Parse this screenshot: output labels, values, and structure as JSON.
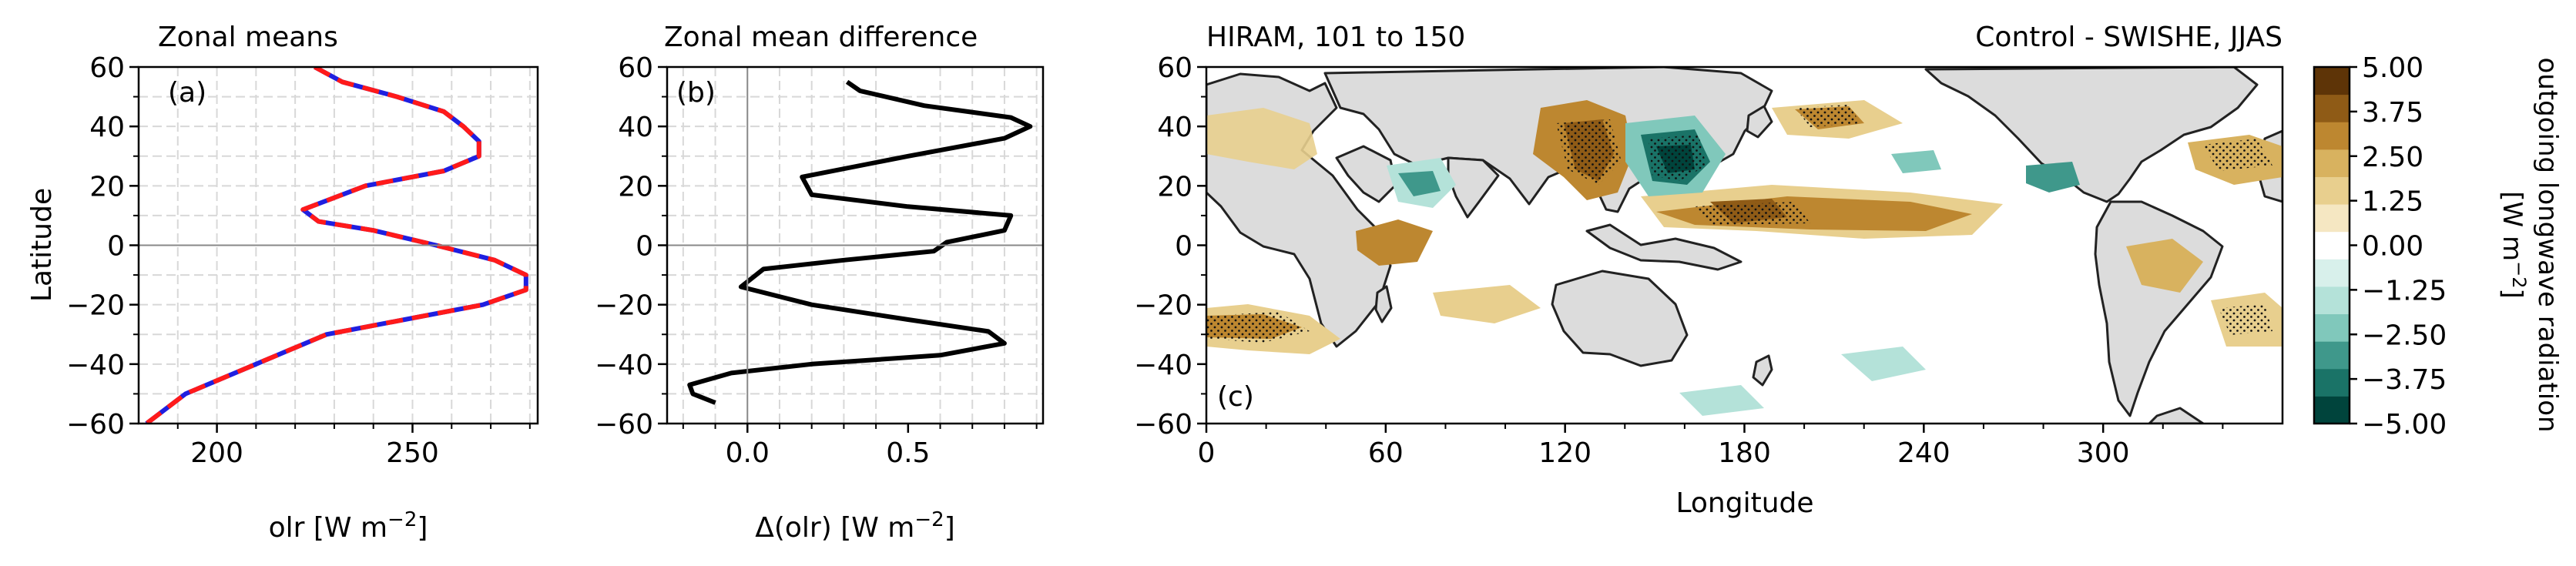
{
  "colors": {
    "olr_blue": "#1f1fe0",
    "olr_red": "#ff1a1a",
    "diff_black": "#000000",
    "land": "#dcdcdc",
    "colormap": [
      "#00443c",
      "#1a7367",
      "#3f988b",
      "#80c8bb",
      "#b4e2d9",
      "#d8f0eb",
      "#ffffff",
      "#f5e7c2",
      "#e8cf8e",
      "#d8b25f",
      "#bd8730",
      "#8f5b16",
      "#5e3407"
    ]
  },
  "chart_data": [
    {
      "type": "line",
      "title": "Zonal means",
      "panel_label": "(a)",
      "xlabel": "olr [W m",
      "xlabel_sup": "−2",
      "xlabel_end": "]",
      "ylabel": "Latitude",
      "xlim": [
        180,
        282
      ],
      "ylim": [
        -60,
        60
      ],
      "xticks": [
        "200",
        "250"
      ],
      "yticks": [
        "60",
        "40",
        "20",
        "0",
        "−20",
        "−40",
        "−60"
      ],
      "grid": true,
      "series": [
        {
          "color": "blue",
          "style": "solid",
          "x": [
            225,
            232,
            246,
            258,
            263,
            267,
            267,
            258,
            238,
            222,
            226,
            240,
            256,
            271,
            279,
            279,
            268,
            248,
            228,
            210,
            192,
            182
          ],
          "y": [
            60,
            55,
            50,
            45,
            40,
            35,
            30,
            25,
            20,
            12,
            8,
            5,
            0,
            -5,
            -10,
            -15,
            -20,
            -25,
            -30,
            -40,
            -50,
            -60
          ]
        },
        {
          "color": "red",
          "style": "dashed",
          "x": [
            225,
            232,
            246,
            258,
            263,
            267,
            267,
            258,
            238,
            222,
            226,
            240,
            256,
            271,
            279,
            279,
            268,
            248,
            228,
            210,
            192,
            182
          ],
          "y": [
            60,
            55,
            50,
            45,
            40,
            35,
            30,
            25,
            20,
            12,
            8,
            5,
            0,
            -5,
            -10,
            -15,
            -20,
            -25,
            -30,
            -40,
            -50,
            -60
          ]
        }
      ]
    },
    {
      "type": "line",
      "title": "Zonal mean difference",
      "panel_label": "(b)",
      "xlabel": "Δ(olr) [W m",
      "xlabel_sup": "−2",
      "xlabel_end": "]",
      "xlim": [
        -0.25,
        0.92
      ],
      "ylim": [
        -60,
        60
      ],
      "xticks": [
        "0.0",
        "0.5"
      ],
      "yticks": [
        "60",
        "40",
        "20",
        "0",
        "−20",
        "−40",
        "−60"
      ],
      "grid": true,
      "series": [
        {
          "color": "black",
          "x": [
            0.31,
            0.35,
            0.55,
            0.82,
            0.88,
            0.8,
            0.5,
            0.17,
            0.2,
            0.5,
            0.82,
            0.8,
            0.62,
            0.58,
            0.3,
            0.05,
            -0.02,
            0.2,
            0.5,
            0.75,
            0.8,
            0.6,
            0.2,
            -0.05,
            -0.18,
            -0.17,
            -0.1
          ],
          "y": [
            55,
            52,
            47,
            43,
            40,
            36,
            30,
            23,
            17,
            13,
            10,
            5,
            1,
            -2,
            -5,
            -8,
            -14,
            -20,
            -25,
            -29,
            -33,
            -37,
            -40,
            -43,
            -47,
            -50,
            -53
          ]
        }
      ]
    },
    {
      "type": "heatmap",
      "title": "HIRAM, 101 to 150",
      "title_right": "Control - SWISHE, JJAS",
      "panel_label": "(c)",
      "xlabel": "Longitude",
      "xlim": [
        0,
        360
      ],
      "ylim": [
        -60,
        60
      ],
      "xticks": [
        "0",
        "60",
        "120",
        "180",
        "240",
        "300"
      ],
      "yticks": [
        "60",
        "40",
        "20",
        "0",
        "−20",
        "−40",
        "−60"
      ],
      "colorbar_label": "outgoing longwave radiation",
      "colorbar_units": "[W m",
      "colorbar_units_sup": "−2",
      "colorbar_units_end": "]",
      "colorbar_ticks": [
        "5.00",
        "3.75",
        "2.50",
        "1.25",
        "0.00",
        "−1.25",
        "−2.50",
        "−3.75",
        "−5.00"
      ],
      "colorbar_range": [
        -5,
        5
      ]
    }
  ]
}
